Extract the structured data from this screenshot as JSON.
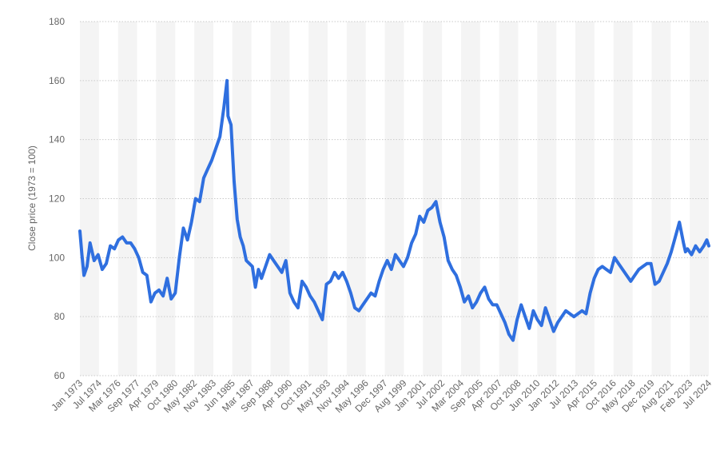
{
  "chart_data": {
    "type": "line",
    "ylabel": "Close price (1973 = 100)",
    "xlabel": "",
    "ylim": [
      60,
      180
    ],
    "yticks": [
      60,
      80,
      100,
      120,
      140,
      160,
      180
    ],
    "grid": true,
    "line_color": "#2f6fdf",
    "band_color": "#f4f4f4",
    "grid_color": "#c9c9c9",
    "x_tick_labels": [
      "Jan 1973",
      "Jul 1974",
      "Mar 1976",
      "Sep 1977",
      "Apr 1979",
      "Oct 1980",
      "May 1982",
      "Nov 1983",
      "Jun 1985",
      "Mar 1987",
      "Sep 1988",
      "Apr 1990",
      "Oct 1991",
      "May 1993",
      "Nov 1994",
      "May 1996",
      "Dec 1997",
      "Aug 1999",
      "Jan 2001",
      "Jul 2002",
      "Mar 2004",
      "Sep 2005",
      "Apr 2007",
      "Oct 2008",
      "Jun 2010",
      "Jan 2012",
      "Jul 2013",
      "Apr 2015",
      "Oct 2016",
      "May 2018",
      "Dec 2019",
      "Aug 2021",
      "Feb 2023",
      "Jul 2024"
    ],
    "series": [
      {
        "x": [
          "1973-01",
          "1973-03",
          "1973-05",
          "1973-08",
          "1973-11",
          "1974-03",
          "1974-07",
          "1974-11",
          "1975-03",
          "1975-07",
          "1975-11",
          "1976-03",
          "1976-07",
          "1976-11",
          "1977-03",
          "1977-07",
          "1977-11",
          "1978-03",
          "1978-07",
          "1978-11",
          "1979-03",
          "1979-07",
          "1979-11",
          "1980-03",
          "1980-07",
          "1980-11",
          "1981-03",
          "1981-07",
          "1981-11",
          "1982-03",
          "1982-07",
          "1982-11",
          "1983-03",
          "1983-07",
          "1983-11",
          "1984-03",
          "1984-07",
          "1984-11",
          "1985-02",
          "1985-03",
          "1985-06",
          "1985-09",
          "1985-12",
          "1986-03",
          "1986-06",
          "1986-09",
          "1986-12",
          "1987-03",
          "1987-06",
          "1987-09",
          "1987-12",
          "1988-04",
          "1988-08",
          "1988-12",
          "1989-04",
          "1989-08",
          "1989-12",
          "1990-04",
          "1990-08",
          "1990-12",
          "1991-04",
          "1991-08",
          "1991-12",
          "1992-04",
          "1992-08",
          "1992-12",
          "1993-04",
          "1993-08",
          "1993-12",
          "1994-04",
          "1994-08",
          "1994-12",
          "1995-04",
          "1995-08",
          "1995-12",
          "1996-04",
          "1996-08",
          "1996-12",
          "1997-04",
          "1997-08",
          "1997-12",
          "1998-04",
          "1998-08",
          "1998-12",
          "1999-04",
          "1999-08",
          "1999-12",
          "2000-04",
          "2000-08",
          "2000-12",
          "2001-04",
          "2001-08",
          "2001-12",
          "2002-04",
          "2002-08",
          "2002-12",
          "2003-04",
          "2003-08",
          "2003-12",
          "2004-04",
          "2004-08",
          "2004-12",
          "2005-04",
          "2005-08",
          "2005-12",
          "2006-04",
          "2006-08",
          "2006-12",
          "2007-04",
          "2007-08",
          "2007-12",
          "2008-04",
          "2008-08",
          "2008-12",
          "2009-04",
          "2009-08",
          "2009-12",
          "2010-04",
          "2010-08",
          "2010-12",
          "2011-04",
          "2011-08",
          "2011-12",
          "2012-04",
          "2012-08",
          "2012-12",
          "2013-04",
          "2013-08",
          "2013-12",
          "2014-04",
          "2014-08",
          "2014-12",
          "2015-04",
          "2015-08",
          "2015-12",
          "2016-04",
          "2016-08",
          "2016-12",
          "2017-04",
          "2017-08",
          "2017-12",
          "2018-04",
          "2018-08",
          "2018-12",
          "2019-04",
          "2019-08",
          "2019-12",
          "2020-04",
          "2020-08",
          "2020-12",
          "2021-04",
          "2021-08",
          "2021-12",
          "2022-04",
          "2022-08",
          "2022-10",
          "2022-12",
          "2023-04",
          "2023-08",
          "2023-12",
          "2024-04",
          "2024-07",
          "2024-09"
        ],
        "values": [
          109,
          101,
          94,
          97,
          105,
          99,
          101,
          96,
          98,
          104,
          103,
          106,
          107,
          105,
          105,
          103,
          100,
          95,
          94,
          85,
          88,
          89,
          87,
          93,
          86,
          88,
          100,
          110,
          106,
          112,
          120,
          119,
          127,
          130,
          133,
          137,
          141,
          151,
          160,
          148,
          145,
          126,
          113,
          107,
          104,
          99,
          98,
          97,
          90,
          96,
          93,
          97,
          101,
          99,
          97,
          95,
          99,
          88,
          85,
          83,
          92,
          90,
          87,
          85,
          82,
          79,
          91,
          92,
          95,
          93,
          95,
          92,
          88,
          83,
          82,
          84,
          86,
          88,
          87,
          92,
          96,
          99,
          96,
          101,
          99,
          97,
          100,
          105,
          108,
          114,
          112,
          116,
          117,
          119,
          112,
          107,
          99,
          96,
          94,
          90,
          85,
          87,
          83,
          85,
          88,
          90,
          86,
          84,
          84,
          81,
          78,
          74,
          72,
          79,
          84,
          80,
          76,
          82,
          79,
          77,
          83,
          79,
          75,
          78,
          80,
          82,
          81,
          80,
          81,
          82,
          81,
          88,
          93,
          96,
          97,
          96,
          95,
          100,
          98,
          96,
          94,
          92,
          94,
          96,
          97,
          98,
          98,
          91,
          92,
          95,
          98,
          102,
          107,
          112,
          105,
          102,
          103,
          101,
          104,
          102,
          104,
          106,
          104
        ]
      }
    ]
  }
}
